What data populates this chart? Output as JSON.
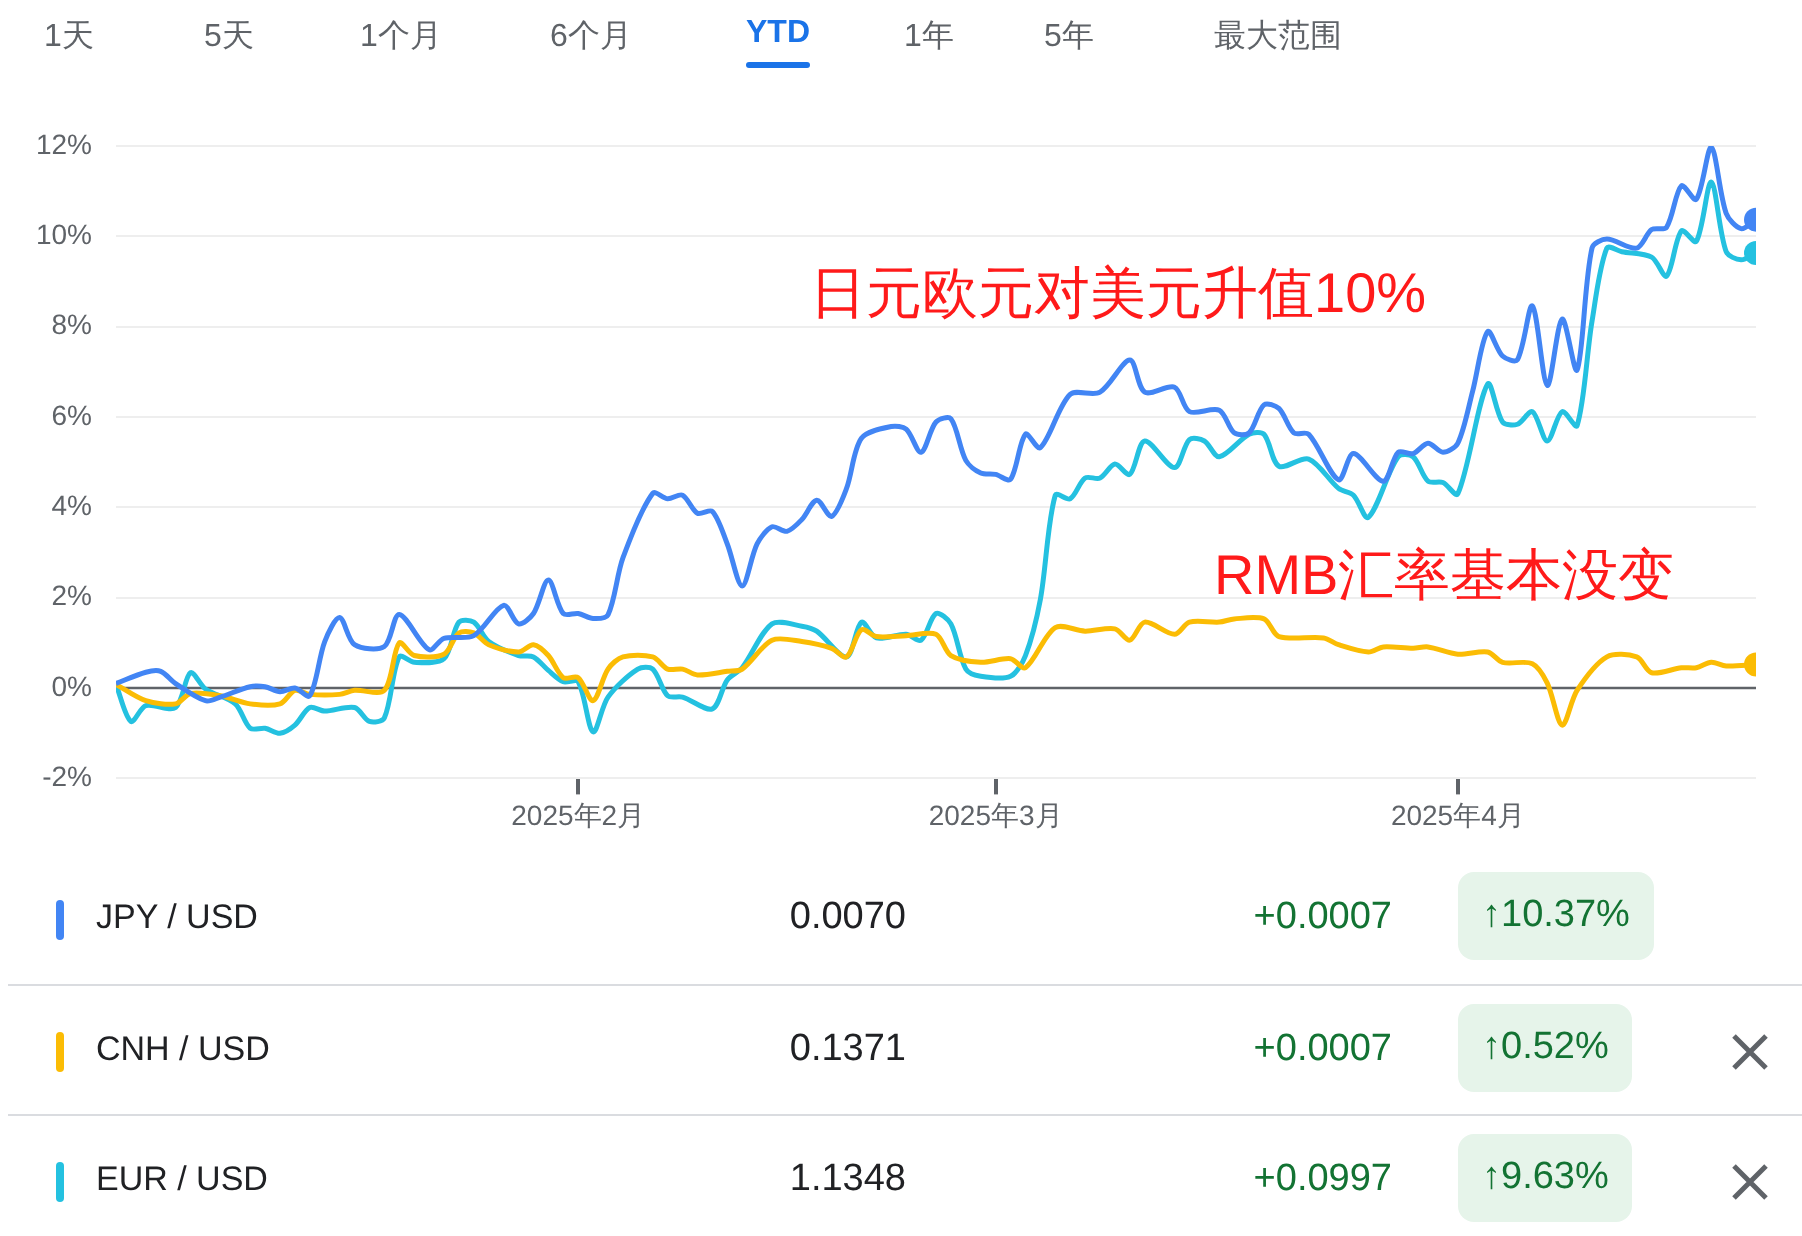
{
  "chart_data": {
    "type": "line",
    "grid": "y",
    "legend": "bottom",
    "xlim": [
      "2025-01-01",
      "2025-04-21"
    ],
    "xticks": [
      {
        "value": "2025-02-01",
        "label": "2025年2月"
      },
      {
        "value": "2025-03-01",
        "label": "2025年3月"
      },
      {
        "value": "2025-04-01",
        "label": "2025年4月"
      }
    ],
    "ylim": [
      -2,
      12
    ],
    "yticks": [
      {
        "value": -2,
        "label": "-2%"
      },
      {
        "value": 0,
        "label": "0%"
      },
      {
        "value": 2,
        "label": "2%"
      },
      {
        "value": 4,
        "label": "4%"
      },
      {
        "value": 6,
        "label": "6%"
      },
      {
        "value": 8,
        "label": "8%"
      },
      {
        "value": 10,
        "label": "10%"
      },
      {
        "value": 12,
        "label": "12%"
      }
    ],
    "ref_lines": [
      {
        "axis": "y",
        "value": 0,
        "color": "#5f6368"
      }
    ],
    "title": "日元欧元对美元升值10%",
    "subtitle": "RMB汇率基本没变",
    "annotations": [
      "1天",
      "5天",
      "1个月",
      "6个月",
      "YTD",
      "1年",
      "5年",
      "最大范围",
      "0.0070",
      "+0.0007",
      "↑10.37%",
      "0.1371",
      "+0.0007",
      "↑0.52%",
      "1.1348",
      "+0.0997",
      "↑9.63%"
    ],
    "series": [
      {
        "name": "JPY / USD",
        "color": "#4285f4",
        "x": [
          "2025-01-01",
          "2025-01-03",
          "2025-01-04",
          "2025-01-05",
          "2025-01-07",
          "2025-01-08",
          "2025-01-10",
          "2025-01-11",
          "2025-01-12",
          "2025-01-13",
          "2025-01-14",
          "2025-01-15",
          "2025-01-16",
          "2025-01-17",
          "2025-01-19",
          "2025-01-20",
          "2025-01-22",
          "2025-01-23",
          "2025-01-25",
          "2025-01-27",
          "2025-01-28",
          "2025-01-29",
          "2025-01-30",
          "2025-01-31",
          "2025-02-01",
          "2025-02-02",
          "2025-02-03",
          "2025-02-04",
          "2025-02-06",
          "2025-02-07",
          "2025-02-08",
          "2025-02-09",
          "2025-02-10",
          "2025-02-11",
          "2025-02-12",
          "2025-02-13",
          "2025-02-14",
          "2025-02-15",
          "2025-02-16",
          "2025-02-17",
          "2025-02-18",
          "2025-02-19",
          "2025-02-20",
          "2025-02-22",
          "2025-02-23",
          "2025-02-24",
          "2025-02-25",
          "2025-02-26",
          "2025-02-27",
          "2025-02-28",
          "2025-03-01",
          "2025-03-02",
          "2025-03-03",
          "2025-03-04",
          "2025-03-06",
          "2025-03-08",
          "2025-03-10",
          "2025-03-11",
          "2025-03-13",
          "2025-03-14",
          "2025-03-16",
          "2025-03-17",
          "2025-03-18",
          "2025-03-19",
          "2025-03-20",
          "2025-03-21",
          "2025-03-22",
          "2025-03-24",
          "2025-03-25",
          "2025-03-27",
          "2025-03-28",
          "2025-03-29",
          "2025-03-30",
          "2025-03-31",
          "2025-04-01",
          "2025-04-02",
          "2025-04-03",
          "2025-04-04",
          "2025-04-05",
          "2025-04-06",
          "2025-04-07",
          "2025-04-08",
          "2025-04-09",
          "2025-04-10",
          "2025-04-11",
          "2025-04-13",
          "2025-04-14",
          "2025-04-15",
          "2025-04-16",
          "2025-04-17",
          "2025-04-18",
          "2025-04-19",
          "2025-04-20",
          "2025-04-21"
        ],
        "values": [
          0.1,
          0.35,
          0.37,
          0.1,
          -0.28,
          -0.2,
          0.03,
          0.03,
          -0.08,
          0.0,
          -0.17,
          1.03,
          1.56,
          0.96,
          0.92,
          1.63,
          0.85,
          1.1,
          1.16,
          1.83,
          1.42,
          1.65,
          2.39,
          1.65,
          1.65,
          1.54,
          1.62,
          2.88,
          4.31,
          4.19,
          4.27,
          3.87,
          3.91,
          3.19,
          2.26,
          3.19,
          3.57,
          3.47,
          3.73,
          4.16,
          3.8,
          4.42,
          5.53,
          5.79,
          5.73,
          5.22,
          5.89,
          5.96,
          5.04,
          4.76,
          4.73,
          4.62,
          5.62,
          5.32,
          6.5,
          6.55,
          7.26,
          6.55,
          6.66,
          6.12,
          6.15,
          5.65,
          5.65,
          6.27,
          6.19,
          5.65,
          5.62,
          4.61,
          5.19,
          4.58,
          5.22,
          5.19,
          5.42,
          5.22,
          5.42,
          6.58,
          7.89,
          7.35,
          7.27,
          8.46,
          6.7,
          8.17,
          7.04,
          9.74,
          9.94,
          9.74,
          10.15,
          10.2,
          11.12,
          10.82,
          11.97,
          10.51,
          10.17,
          10.37
        ]
      },
      {
        "name": "CNH / USD",
        "color": "#fbbc04",
        "x": [
          "2025-01-01",
          "2025-01-03",
          "2025-01-05",
          "2025-01-06",
          "2025-01-08",
          "2025-01-10",
          "2025-01-12",
          "2025-01-13",
          "2025-01-14",
          "2025-01-16",
          "2025-01-17",
          "2025-01-19",
          "2025-01-20",
          "2025-01-21",
          "2025-01-23",
          "2025-01-24",
          "2025-01-25",
          "2025-01-26",
          "2025-01-28",
          "2025-01-29",
          "2025-01-30",
          "2025-01-31",
          "2025-02-01",
          "2025-02-02",
          "2025-02-03",
          "2025-02-04",
          "2025-02-06",
          "2025-02-07",
          "2025-02-08",
          "2025-02-09",
          "2025-02-11",
          "2025-02-12",
          "2025-02-14",
          "2025-02-16",
          "2025-02-18",
          "2025-02-19",
          "2025-02-20",
          "2025-02-21",
          "2025-02-23",
          "2025-02-25",
          "2025-02-26",
          "2025-02-28",
          "2025-03-02",
          "2025-03-03",
          "2025-03-05",
          "2025-03-07",
          "2025-03-09",
          "2025-03-10",
          "2025-03-11",
          "2025-03-13",
          "2025-03-14",
          "2025-03-16",
          "2025-03-17",
          "2025-03-19",
          "2025-03-20",
          "2025-03-23",
          "2025-03-24",
          "2025-03-26",
          "2025-03-27",
          "2025-03-29",
          "2025-03-30",
          "2025-04-01",
          "2025-04-03",
          "2025-04-04",
          "2025-04-06",
          "2025-04-07",
          "2025-04-08",
          "2025-04-09",
          "2025-04-11",
          "2025-04-13",
          "2025-04-14",
          "2025-04-16",
          "2025-04-17",
          "2025-04-18",
          "2025-04-19",
          "2025-04-21"
        ],
        "values": [
          0.08,
          -0.28,
          -0.35,
          -0.12,
          -0.17,
          -0.35,
          -0.35,
          -0.05,
          -0.14,
          -0.14,
          -0.05,
          -0.05,
          1.0,
          0.72,
          0.75,
          1.22,
          1.22,
          0.96,
          0.8,
          0.96,
          0.72,
          0.23,
          0.23,
          -0.28,
          0.42,
          0.69,
          0.69,
          0.42,
          0.42,
          0.29,
          0.37,
          0.42,
          1.06,
          1.03,
          0.88,
          0.69,
          1.29,
          1.14,
          1.16,
          1.19,
          0.72,
          0.57,
          0.65,
          0.45,
          1.34,
          1.26,
          1.31,
          1.06,
          1.46,
          1.19,
          1.46,
          1.46,
          1.53,
          1.53,
          1.14,
          1.11,
          0.96,
          0.8,
          0.91,
          0.88,
          0.91,
          0.75,
          0.8,
          0.57,
          0.54,
          0.11,
          -0.82,
          -0.05,
          0.69,
          0.69,
          0.34,
          0.45,
          0.45,
          0.57,
          0.49,
          0.52
        ]
      },
      {
        "name": "EUR / USD",
        "color": "#24c1e0",
        "x": [
          "2025-01-01",
          "2025-01-02",
          "2025-01-03",
          "2025-01-05",
          "2025-01-06",
          "2025-01-07",
          "2025-01-09",
          "2025-01-10",
          "2025-01-11",
          "2025-01-12",
          "2025-01-13",
          "2025-01-14",
          "2025-01-15",
          "2025-01-17",
          "2025-01-18",
          "2025-01-19",
          "2025-01-20",
          "2025-01-21",
          "2025-01-23",
          "2025-01-24",
          "2025-01-25",
          "2025-01-26",
          "2025-01-28",
          "2025-01-29",
          "2025-01-30",
          "2025-01-31",
          "2025-02-01",
          "2025-02-02",
          "2025-02-03",
          "2025-02-05",
          "2025-02-06",
          "2025-02-07",
          "2025-02-08",
          "2025-02-10",
          "2025-02-11",
          "2025-02-12",
          "2025-02-14",
          "2025-02-16",
          "2025-02-17",
          "2025-02-19",
          "2025-02-20",
          "2025-02-21",
          "2025-02-23",
          "2025-02-24",
          "2025-02-25",
          "2025-02-26",
          "2025-02-27",
          "2025-02-28",
          "2025-03-02",
          "2025-03-03",
          "2025-03-04",
          "2025-03-05",
          "2025-03-06",
          "2025-03-07",
          "2025-03-08",
          "2025-03-09",
          "2025-03-10",
          "2025-03-11",
          "2025-03-13",
          "2025-03-14",
          "2025-03-15",
          "2025-03-16",
          "2025-03-18",
          "2025-03-19",
          "2025-03-20",
          "2025-03-22",
          "2025-03-24",
          "2025-03-25",
          "2025-03-26",
          "2025-03-28",
          "2025-03-29",
          "2025-03-30",
          "2025-03-31",
          "2025-04-01",
          "2025-04-03",
          "2025-04-04",
          "2025-04-05",
          "2025-04-06",
          "2025-04-07",
          "2025-04-08",
          "2025-04-09",
          "2025-04-10",
          "2025-04-11",
          "2025-04-12",
          "2025-04-14",
          "2025-04-15",
          "2025-04-16",
          "2025-04-17",
          "2025-04-18",
          "2025-04-19",
          "2025-04-20",
          "2025-04-21"
        ],
        "values": [
          0.08,
          -0.74,
          -0.39,
          -0.43,
          0.34,
          -0.02,
          -0.35,
          -0.89,
          -0.89,
          -1.0,
          -0.82,
          -0.43,
          -0.51,
          -0.43,
          -0.74,
          -0.66,
          0.69,
          0.57,
          0.65,
          1.46,
          1.46,
          1.03,
          0.72,
          0.69,
          0.39,
          0.14,
          0.14,
          -0.97,
          -0.2,
          0.42,
          0.42,
          -0.17,
          -0.2,
          -0.46,
          0.18,
          0.45,
          1.42,
          1.37,
          1.26,
          0.69,
          1.46,
          1.11,
          1.19,
          1.06,
          1.65,
          1.42,
          0.42,
          0.26,
          0.26,
          0.72,
          1.96,
          4.27,
          4.19,
          4.65,
          4.65,
          4.96,
          4.73,
          5.47,
          4.88,
          5.5,
          5.47,
          5.12,
          5.62,
          5.62,
          4.91,
          5.07,
          4.42,
          4.27,
          3.78,
          5.12,
          5.12,
          4.58,
          4.55,
          4.3,
          6.73,
          5.89,
          5.84,
          6.12,
          5.47,
          6.12,
          5.81,
          8.12,
          9.74,
          9.66,
          9.54,
          9.12,
          10.12,
          9.89,
          11.2,
          9.66,
          9.48,
          9.63
        ]
      }
    ]
  }
}
